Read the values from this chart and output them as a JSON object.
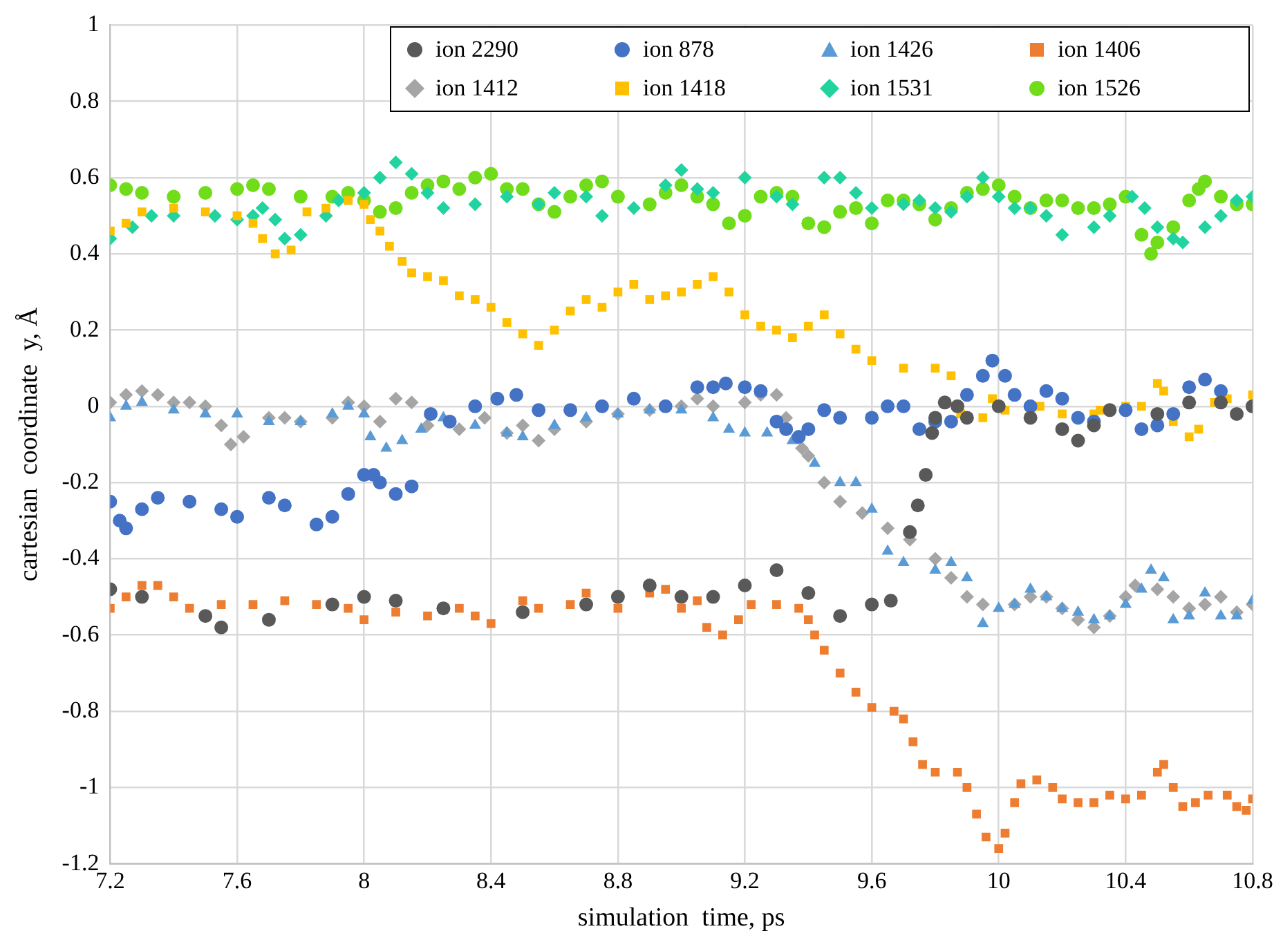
{
  "chart_data": {
    "type": "scatter",
    "xlabel": "simulation  time, ps",
    "ylabel": "cartesian  coordinate  y, Å",
    "xlim": [
      7.2,
      10.8
    ],
    "xticks": [
      7.2,
      7.6,
      8,
      8.4,
      8.8,
      9.2,
      9.6,
      10,
      10.4,
      10.8
    ],
    "ylim": [
      -1.2,
      1
    ],
    "yticks": [
      -1.2,
      -1,
      -0.8,
      -0.6,
      -0.4,
      -0.2,
      0,
      0.2,
      0.4,
      0.6,
      0.8,
      1
    ],
    "grid": true,
    "legend": "top right",
    "series": [
      {
        "name": "ion 2290",
        "color": "#595959",
        "marker": "circle",
        "x": [
          7.2,
          7.3,
          7.5,
          7.55,
          7.7,
          7.9,
          8.0,
          8.1,
          8.25,
          8.5,
          8.7,
          8.8,
          8.9,
          9.0,
          9.1,
          9.2,
          9.3,
          9.4,
          9.5,
          9.6,
          9.66,
          9.72,
          9.745,
          9.77,
          9.79,
          9.8,
          9.83,
          9.87,
          9.9,
          10.0,
          10.1,
          10.2,
          10.25,
          10.3,
          10.35,
          10.5,
          10.6,
          10.7,
          10.75,
          10.8
        ],
        "values": [
          -0.48,
          -0.5,
          -0.55,
          -0.58,
          -0.56,
          -0.52,
          -0.5,
          -0.51,
          -0.53,
          -0.54,
          -0.52,
          -0.5,
          -0.47,
          -0.5,
          -0.5,
          -0.47,
          -0.43,
          -0.49,
          -0.55,
          -0.52,
          -0.51,
          -0.33,
          -0.26,
          -0.18,
          -0.07,
          -0.03,
          0.01,
          0.0,
          -0.03,
          0.0,
          -0.03,
          -0.06,
          -0.09,
          -0.05,
          -0.01,
          -0.02,
          0.01,
          0.01,
          -0.02,
          0.0
        ]
      },
      {
        "name": "ion 878",
        "color": "#4472c4",
        "marker": "circle",
        "x": [
          7.2,
          7.23,
          7.25,
          7.3,
          7.35,
          7.45,
          7.55,
          7.6,
          7.7,
          7.75,
          7.85,
          7.9,
          7.95,
          8.0,
          8.03,
          8.05,
          8.1,
          8.15,
          8.21,
          8.27,
          8.35,
          8.42,
          8.48,
          8.55,
          8.65,
          8.75,
          8.85,
          8.95,
          9.05,
          9.1,
          9.14,
          9.2,
          9.25,
          9.3,
          9.33,
          9.37,
          9.4,
          9.45,
          9.5,
          9.6,
          9.65,
          9.7,
          9.75,
          9.8,
          9.85,
          9.9,
          9.95,
          9.98,
          10.02,
          10.05,
          10.1,
          10.15,
          10.2,
          10.25,
          10.3,
          10.4,
          10.45,
          10.5,
          10.55,
          10.6,
          10.65,
          10.7,
          10.8
        ],
        "values": [
          -0.25,
          -0.3,
          -0.32,
          -0.27,
          -0.24,
          -0.25,
          -0.27,
          -0.29,
          -0.24,
          -0.26,
          -0.31,
          -0.29,
          -0.23,
          -0.18,
          -0.18,
          -0.2,
          -0.23,
          -0.21,
          -0.02,
          -0.04,
          0.0,
          0.02,
          0.03,
          -0.01,
          -0.01,
          0.0,
          0.02,
          0.0,
          0.05,
          0.05,
          0.06,
          0.05,
          0.04,
          -0.04,
          -0.06,
          -0.08,
          -0.06,
          -0.01,
          -0.03,
          -0.03,
          0.0,
          0.0,
          -0.06,
          -0.04,
          -0.04,
          0.03,
          0.08,
          0.12,
          0.08,
          0.03,
          0.0,
          0.04,
          0.02,
          -0.03,
          -0.04,
          -0.01,
          -0.06,
          -0.05,
          -0.02,
          0.05,
          0.07,
          0.04,
          0.0
        ]
      },
      {
        "name": "ion 1426",
        "color": "#5b9bd5",
        "marker": "triangle",
        "x": [
          7.2,
          7.25,
          7.3,
          7.4,
          7.5,
          7.6,
          7.7,
          7.8,
          7.9,
          7.95,
          8.0,
          8.02,
          8.07,
          8.12,
          8.18,
          8.25,
          8.35,
          8.45,
          8.5,
          8.6,
          8.7,
          8.8,
          8.9,
          9.0,
          9.1,
          9.15,
          9.2,
          9.27,
          9.35,
          9.42,
          9.5,
          9.55,
          9.6,
          9.65,
          9.7,
          9.8,
          9.85,
          9.9,
          9.95,
          10.0,
          10.05,
          10.1,
          10.15,
          10.2,
          10.25,
          10.3,
          10.35,
          10.4,
          10.45,
          10.48,
          10.52,
          10.55,
          10.6,
          10.65,
          10.7,
          10.75,
          10.8
        ],
        "values": [
          -0.03,
          0.0,
          0.01,
          -0.01,
          -0.02,
          -0.02,
          -0.04,
          -0.04,
          -0.02,
          0.0,
          -0.02,
          -0.08,
          -0.11,
          -0.09,
          -0.06,
          -0.03,
          -0.05,
          -0.07,
          -0.08,
          -0.05,
          -0.03,
          -0.02,
          -0.01,
          -0.01,
          -0.03,
          -0.06,
          -0.07,
          -0.07,
          -0.09,
          -0.15,
          -0.2,
          -0.2,
          -0.27,
          -0.38,
          -0.41,
          -0.43,
          -0.41,
          -0.45,
          -0.57,
          -0.53,
          -0.52,
          -0.48,
          -0.5,
          -0.53,
          -0.54,
          -0.56,
          -0.55,
          -0.52,
          -0.48,
          -0.43,
          -0.45,
          -0.56,
          -0.55,
          -0.49,
          -0.55,
          -0.55,
          -0.51
        ]
      },
      {
        "name": "ion 1406",
        "color": "#ed7d31",
        "marker": "square",
        "x": [
          7.2,
          7.25,
          7.3,
          7.35,
          7.4,
          7.45,
          7.55,
          7.65,
          7.75,
          7.85,
          7.95,
          8.0,
          8.1,
          8.2,
          8.3,
          8.35,
          8.4,
          8.5,
          8.55,
          8.65,
          8.7,
          8.8,
          8.9,
          8.95,
          9.0,
          9.05,
          9.08,
          9.13,
          9.18,
          9.22,
          9.3,
          9.37,
          9.4,
          9.42,
          9.45,
          9.5,
          9.55,
          9.6,
          9.67,
          9.7,
          9.73,
          9.76,
          9.8,
          9.87,
          9.9,
          9.93,
          9.96,
          10.0,
          10.02,
          10.05,
          10.07,
          10.12,
          10.17,
          10.2,
          10.25,
          10.3,
          10.35,
          10.4,
          10.45,
          10.5,
          10.52,
          10.55,
          10.58,
          10.62,
          10.66,
          10.72,
          10.75,
          10.78,
          10.8
        ],
        "values": [
          -0.53,
          -0.5,
          -0.47,
          -0.47,
          -0.5,
          -0.53,
          -0.52,
          -0.52,
          -0.51,
          -0.52,
          -0.53,
          -0.56,
          -0.54,
          -0.55,
          -0.53,
          -0.55,
          -0.57,
          -0.51,
          -0.53,
          -0.52,
          -0.49,
          -0.53,
          -0.49,
          -0.48,
          -0.53,
          -0.51,
          -0.58,
          -0.6,
          -0.56,
          -0.52,
          -0.52,
          -0.53,
          -0.56,
          -0.6,
          -0.64,
          -0.7,
          -0.75,
          -0.79,
          -0.8,
          -0.82,
          -0.88,
          -0.94,
          -0.96,
          -0.96,
          -1.0,
          -1.07,
          -1.13,
          -1.16,
          -1.12,
          -1.04,
          -0.99,
          -0.98,
          -1.0,
          -1.03,
          -1.04,
          -1.04,
          -1.02,
          -1.03,
          -1.02,
          -0.96,
          -0.94,
          -1.0,
          -1.05,
          -1.04,
          -1.02,
          -1.02,
          -1.05,
          -1.06,
          -1.03
        ]
      },
      {
        "name": "ion 1412",
        "color": "#a5a5a5",
        "marker": "diamond",
        "x": [
          7.2,
          7.25,
          7.3,
          7.35,
          7.4,
          7.45,
          7.5,
          7.55,
          7.58,
          7.62,
          7.7,
          7.75,
          7.8,
          7.9,
          7.95,
          8.0,
          8.05,
          8.1,
          8.15,
          8.2,
          8.3,
          8.38,
          8.45,
          8.5,
          8.55,
          8.6,
          8.7,
          8.8,
          8.9,
          9.0,
          9.05,
          9.1,
          9.2,
          9.25,
          9.3,
          9.33,
          9.38,
          9.4,
          9.45,
          9.5,
          9.57,
          9.65,
          9.72,
          9.8,
          9.85,
          9.9,
          9.95,
          10.05,
          10.1,
          10.15,
          10.2,
          10.25,
          10.3,
          10.35,
          10.4,
          10.43,
          10.5,
          10.55,
          10.6,
          10.65,
          10.7,
          10.75,
          10.8
        ],
        "values": [
          0.01,
          0.03,
          0.04,
          0.03,
          0.01,
          0.01,
          0.0,
          -0.05,
          -0.1,
          -0.08,
          -0.03,
          -0.03,
          -0.04,
          -0.03,
          0.01,
          0.0,
          -0.04,
          0.02,
          0.01,
          -0.05,
          -0.06,
          -0.03,
          -0.07,
          -0.05,
          -0.09,
          -0.06,
          -0.04,
          -0.02,
          -0.01,
          0.0,
          0.02,
          0.0,
          0.01,
          0.03,
          0.03,
          -0.03,
          -0.11,
          -0.13,
          -0.2,
          -0.25,
          -0.28,
          -0.32,
          -0.35,
          -0.4,
          -0.45,
          -0.5,
          -0.52,
          -0.52,
          -0.5,
          -0.5,
          -0.53,
          -0.56,
          -0.58,
          -0.55,
          -0.5,
          -0.47,
          -0.48,
          -0.5,
          -0.53,
          -0.52,
          -0.5,
          -0.54,
          -0.52
        ]
      },
      {
        "name": "ion 1418",
        "color": "#ffc000",
        "marker": "square",
        "x": [
          7.2,
          7.25,
          7.3,
          7.4,
          7.5,
          7.6,
          7.65,
          7.68,
          7.72,
          7.77,
          7.82,
          7.88,
          7.95,
          8.0,
          8.02,
          8.05,
          8.08,
          8.12,
          8.15,
          8.2,
          8.25,
          8.3,
          8.35,
          8.4,
          8.45,
          8.5,
          8.55,
          8.6,
          8.65,
          8.7,
          8.75,
          8.8,
          8.85,
          8.9,
          8.95,
          9.0,
          9.05,
          9.1,
          9.15,
          9.2,
          9.25,
          9.3,
          9.35,
          9.4,
          9.45,
          9.5,
          9.55,
          9.6,
          9.7,
          9.8,
          9.85,
          9.88,
          9.95,
          9.98,
          10.02,
          10.13,
          10.2,
          10.3,
          10.32,
          10.4,
          10.45,
          10.5,
          10.52,
          10.55,
          10.6,
          10.63,
          10.68,
          10.72,
          10.8
        ],
        "values": [
          0.46,
          0.48,
          0.51,
          0.52,
          0.51,
          0.5,
          0.48,
          0.44,
          0.4,
          0.41,
          0.51,
          0.52,
          0.54,
          0.53,
          0.49,
          0.46,
          0.42,
          0.38,
          0.35,
          0.34,
          0.33,
          0.29,
          0.28,
          0.26,
          0.22,
          0.19,
          0.16,
          0.2,
          0.25,
          0.28,
          0.26,
          0.3,
          0.32,
          0.28,
          0.29,
          0.3,
          0.32,
          0.34,
          0.3,
          0.24,
          0.21,
          0.2,
          0.18,
          0.21,
          0.24,
          0.19,
          0.15,
          0.12,
          0.1,
          0.1,
          0.08,
          -0.02,
          -0.03,
          0.02,
          -0.01,
          0.0,
          -0.02,
          -0.02,
          -0.01,
          0.0,
          0.0,
          0.06,
          0.04,
          -0.04,
          -0.08,
          -0.06,
          0.01,
          0.02,
          0.03
        ]
      },
      {
        "name": "ion 1531",
        "color": "#20d39f",
        "marker": "diamond",
        "x": [
          7.2,
          7.27,
          7.33,
          7.4,
          7.53,
          7.6,
          7.65,
          7.68,
          7.72,
          7.75,
          7.8,
          7.88,
          7.92,
          8.0,
          8.05,
          8.1,
          8.15,
          8.2,
          8.25,
          8.35,
          8.45,
          8.55,
          8.6,
          8.7,
          8.75,
          8.85,
          8.95,
          9.0,
          9.05,
          9.1,
          9.2,
          9.3,
          9.35,
          9.45,
          9.5,
          9.55,
          9.6,
          9.7,
          9.75,
          9.8,
          9.85,
          9.9,
          9.95,
          10.0,
          10.05,
          10.1,
          10.15,
          10.2,
          10.3,
          10.35,
          10.42,
          10.46,
          10.5,
          10.55,
          10.58,
          10.65,
          10.7,
          10.75,
          10.8
        ],
        "values": [
          0.44,
          0.47,
          0.5,
          0.5,
          0.5,
          0.49,
          0.5,
          0.52,
          0.49,
          0.44,
          0.45,
          0.5,
          0.54,
          0.56,
          0.6,
          0.64,
          0.61,
          0.56,
          0.52,
          0.53,
          0.55,
          0.53,
          0.56,
          0.55,
          0.5,
          0.52,
          0.58,
          0.62,
          0.57,
          0.56,
          0.6,
          0.55,
          0.53,
          0.6,
          0.6,
          0.56,
          0.52,
          0.53,
          0.54,
          0.52,
          0.51,
          0.55,
          0.6,
          0.55,
          0.52,
          0.52,
          0.5,
          0.45,
          0.47,
          0.5,
          0.55,
          0.52,
          0.47,
          0.44,
          0.43,
          0.47,
          0.5,
          0.54,
          0.55
        ]
      },
      {
        "name": "ion 1526",
        "color": "#70dc1a",
        "marker": "circle",
        "x": [
          7.2,
          7.25,
          7.3,
          7.4,
          7.5,
          7.6,
          7.65,
          7.7,
          7.8,
          7.9,
          7.95,
          8.0,
          8.05,
          8.1,
          8.15,
          8.2,
          8.25,
          8.3,
          8.35,
          8.4,
          8.45,
          8.5,
          8.55,
          8.6,
          8.65,
          8.7,
          8.75,
          8.8,
          8.9,
          8.95,
          9.0,
          9.05,
          9.1,
          9.15,
          9.2,
          9.25,
          9.3,
          9.35,
          9.4,
          9.45,
          9.5,
          9.55,
          9.6,
          9.65,
          9.7,
          9.75,
          9.8,
          9.85,
          9.9,
          9.95,
          10.0,
          10.05,
          10.1,
          10.15,
          10.2,
          10.25,
          10.3,
          10.35,
          10.4,
          10.45,
          10.48,
          10.5,
          10.55,
          10.6,
          10.63,
          10.65,
          10.7,
          10.75,
          10.8
        ],
        "values": [
          0.58,
          0.57,
          0.56,
          0.55,
          0.56,
          0.57,
          0.58,
          0.57,
          0.55,
          0.55,
          0.56,
          0.54,
          0.51,
          0.52,
          0.56,
          0.58,
          0.59,
          0.57,
          0.6,
          0.61,
          0.57,
          0.57,
          0.53,
          0.51,
          0.55,
          0.58,
          0.59,
          0.55,
          0.53,
          0.56,
          0.58,
          0.55,
          0.53,
          0.48,
          0.5,
          0.55,
          0.56,
          0.55,
          0.48,
          0.47,
          0.51,
          0.52,
          0.48,
          0.54,
          0.54,
          0.53,
          0.49,
          0.52,
          0.56,
          0.57,
          0.58,
          0.55,
          0.52,
          0.54,
          0.54,
          0.52,
          0.52,
          0.53,
          0.55,
          0.45,
          0.4,
          0.43,
          0.47,
          0.54,
          0.57,
          0.59,
          0.55,
          0.53,
          0.53
        ]
      }
    ]
  }
}
